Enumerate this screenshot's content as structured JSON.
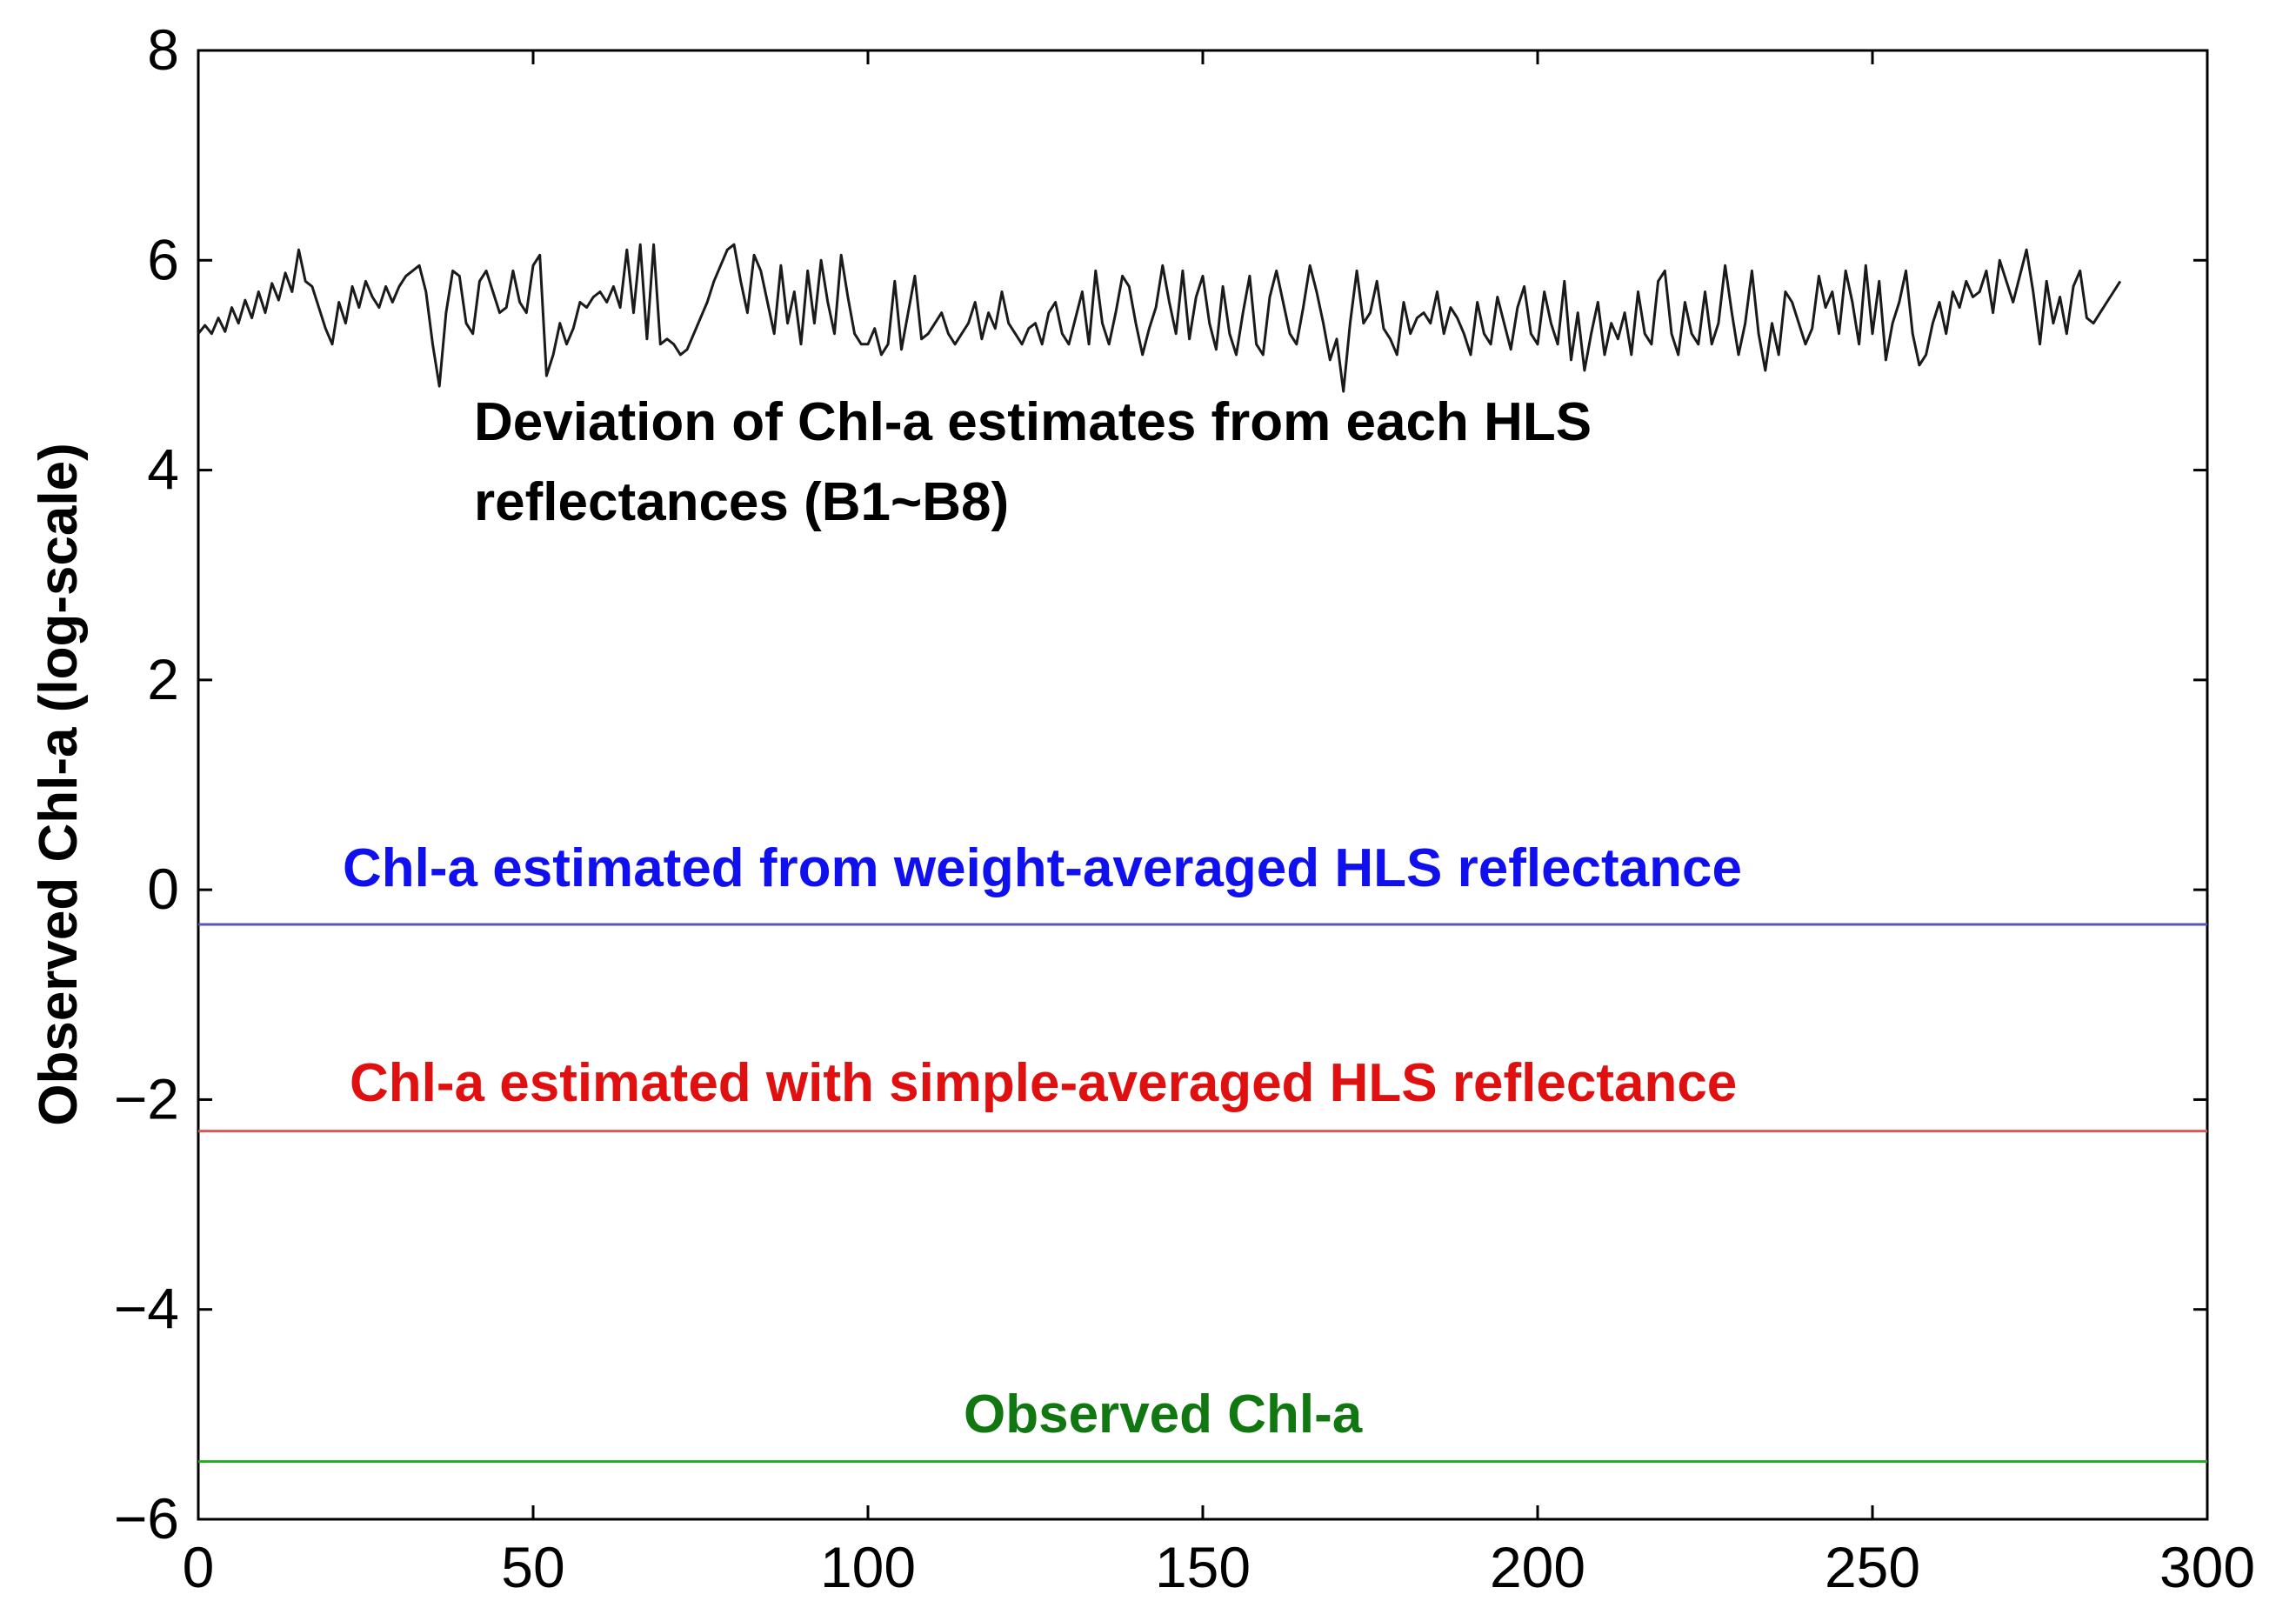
{
  "chart_data": {
    "type": "line",
    "title": "",
    "xlabel": "",
    "ylabel": "Observed Chl-a (log-scale)",
    "xlim": [
      0,
      300
    ],
    "ylim": [
      -6,
      8
    ],
    "xticks": [
      0,
      50,
      100,
      150,
      200,
      250,
      300
    ],
    "yticks": [
      8,
      6,
      4,
      2,
      0,
      -2,
      -4,
      -6
    ],
    "ytick_labels": [
      "8",
      "6",
      "4",
      "2",
      "0",
      "−2",
      "−4",
      "−6"
    ],
    "xtick_labels": [
      "0",
      "50",
      "100",
      "150",
      "200",
      "250",
      "300"
    ],
    "grid": false,
    "colors": {
      "deviation": "#1a1a1a",
      "weighted": "#5555bb",
      "simple": "#dd5555",
      "observed": "#22aa22",
      "weighted_text": "#1010ee",
      "simple_text": "#e01010",
      "observed_text": "#117711"
    },
    "annotations": {
      "deviation_line1": "Deviation of Chl-a estimates from each HLS",
      "deviation_line2": "reflectances (B1~B8)",
      "weighted": "Chl-a estimated from weight-averaged HLS reflectance",
      "simple": "Chl-a estimated with simple-averaged HLS reflectance",
      "observed": "Observed Chl-a"
    },
    "series": [
      {
        "name": "Deviation of Chl-a estimates from each HLS reflectances (B1~B8)",
        "x_start": 0,
        "x_step": 1,
        "values": [
          5.3,
          5.38,
          5.3,
          5.45,
          5.32,
          5.55,
          5.4,
          5.62,
          5.45,
          5.7,
          5.5,
          5.78,
          5.62,
          5.88,
          5.7,
          6.1,
          5.8,
          5.75,
          5.55,
          5.35,
          5.2,
          5.6,
          5.4,
          5.75,
          5.55,
          5.8,
          5.65,
          5.55,
          5.75,
          5.6,
          5.75,
          5.85,
          5.9,
          5.95,
          5.7,
          5.2,
          4.8,
          5.5,
          5.9,
          5.85,
          5.4,
          5.3,
          5.8,
          5.9,
          5.7,
          5.5,
          5.55,
          5.9,
          5.6,
          5.5,
          5.95,
          6.05,
          4.9,
          5.1,
          5.4,
          5.2,
          5.35,
          5.6,
          5.55,
          5.65,
          5.7,
          5.6,
          5.75,
          5.55,
          6.1,
          5.5,
          6.15,
          5.25,
          6.15,
          5.2,
          5.25,
          5.2,
          5.1,
          5.15,
          5.3,
          5.45,
          5.6,
          5.8,
          5.95,
          6.1,
          6.15,
          5.8,
          5.5,
          6.05,
          5.9,
          5.6,
          5.3,
          5.95,
          5.4,
          5.7,
          5.2,
          5.9,
          5.4,
          6.0,
          5.6,
          5.3,
          6.05,
          5.65,
          5.3,
          5.2,
          5.2,
          5.35,
          5.1,
          5.2,
          5.8,
          5.15,
          5.5,
          5.85,
          5.25,
          5.3,
          5.4,
          5.5,
          5.3,
          5.2,
          5.3,
          5.4,
          5.6,
          5.25,
          5.5,
          5.35,
          5.7,
          5.4,
          5.3,
          5.2,
          5.35,
          5.4,
          5.2,
          5.5,
          5.6,
          5.3,
          5.2,
          5.45,
          5.7,
          5.2,
          5.9,
          5.4,
          5.2,
          5.5,
          5.85,
          5.75,
          5.4,
          5.1,
          5.35,
          5.55,
          5.95,
          5.6,
          5.3,
          5.9,
          5.25,
          5.65,
          5.85,
          5.4,
          5.15,
          5.75,
          5.3,
          5.1,
          5.5,
          5.85,
          5.2,
          5.1,
          5.65,
          5.9,
          5.6,
          5.3,
          5.2,
          5.55,
          5.95,
          5.7,
          5.4,
          5.05,
          5.25,
          4.75,
          5.4,
          5.9,
          5.4,
          5.5,
          5.8,
          5.35,
          5.25,
          5.1,
          5.6,
          5.3,
          5.45,
          5.5,
          5.4,
          5.7,
          5.3,
          5.55,
          5.45,
          5.3,
          5.1,
          5.6,
          5.3,
          5.2,
          5.65,
          5.4,
          5.15,
          5.55,
          5.75,
          5.3,
          5.2,
          5.7,
          5.4,
          5.2,
          5.8,
          5.05,
          5.5,
          4.95,
          5.3,
          5.6,
          5.1,
          5.4,
          5.25,
          5.5,
          5.1,
          5.7,
          5.3,
          5.2,
          5.8,
          5.9,
          5.3,
          5.1,
          5.6,
          5.3,
          5.2,
          5.7,
          5.2,
          5.4,
          5.95,
          5.5,
          5.1,
          5.4,
          5.9,
          5.3,
          4.95,
          5.4,
          5.1,
          5.7,
          5.6,
          5.4,
          5.2,
          5.35,
          5.85,
          5.55,
          5.7,
          5.3,
          5.9,
          5.6,
          5.2,
          5.95,
          5.3,
          5.8,
          5.05,
          5.4,
          5.6,
          5.9,
          5.3,
          5.0,
          5.1,
          5.4,
          5.6,
          5.3,
          5.7,
          5.55,
          5.8,
          5.65,
          5.7,
          5.9,
          5.5,
          6.0,
          5.8,
          5.6,
          5.85,
          6.1,
          5.7,
          5.2,
          5.8,
          5.4,
          5.65,
          5.3,
          5.75,
          5.9,
          5.45,
          5.4,
          5.5,
          5.6,
          5.7,
          5.8
        ]
      },
      {
        "name": "Chl-a estimated from weight-averaged HLS reflectance",
        "x": [
          0,
          300
        ],
        "values": [
          -0.33,
          -0.33
        ]
      },
      {
        "name": "Chl-a estimated with simple-averaged HLS reflectance",
        "x": [
          0,
          300
        ],
        "values": [
          -2.3,
          -2.3
        ]
      },
      {
        "name": "Observed Chl-a",
        "x": [
          0,
          300
        ],
        "values": [
          -5.45,
          -5.45
        ]
      }
    ]
  }
}
